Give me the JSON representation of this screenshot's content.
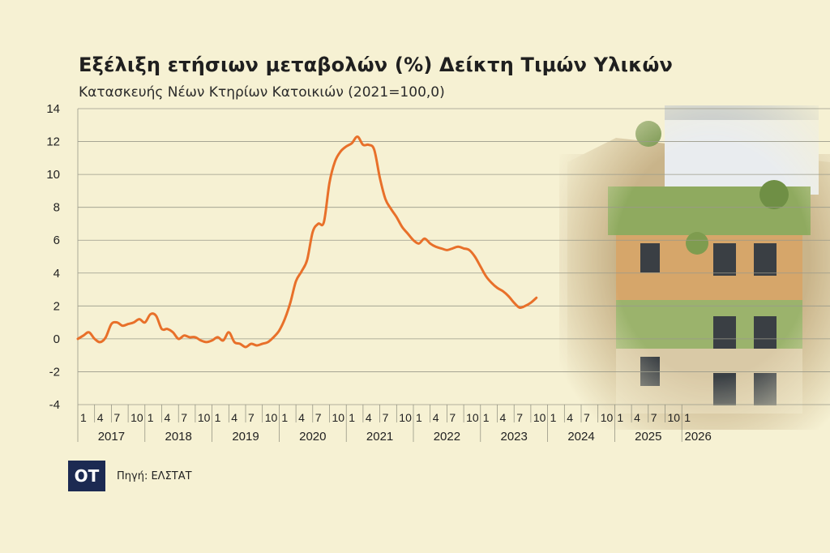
{
  "chart_data": {
    "type": "line",
    "title": "Εξέλιξη ετήσιων μεταβολών (%) Δείκτη Τιμών Υλικών",
    "subtitle": "Κατασκευής Νέων Κτηρίων Κατοικιών (2021=100,0)",
    "ylim": [
      -4,
      14
    ],
    "yticks": [
      "14",
      "12",
      "10",
      "8",
      "6",
      "4",
      "2",
      "0",
      "-2",
      "-4"
    ],
    "month_ticks": [
      "1",
      "4",
      "7",
      "10"
    ],
    "years": [
      "2017",
      "2018",
      "2019",
      "2020",
      "2021",
      "2022",
      "2023",
      "2024",
      "2025",
      "2026"
    ],
    "grid": true,
    "line_color": "#e8702a",
    "series": [
      {
        "values": [
          0.0,
          0.2,
          0.4,
          0.0,
          -0.2,
          0.1,
          0.9,
          1.0,
          0.8,
          0.9,
          1.0,
          1.2,
          1.0,
          1.5,
          1.4,
          0.6,
          0.6,
          0.4,
          0.0,
          0.2,
          0.1,
          0.1,
          -0.1,
          -0.2,
          -0.1,
          0.1,
          -0.1,
          0.4,
          -0.2,
          -0.3,
          -0.5,
          -0.3,
          -0.4,
          -0.3,
          -0.2,
          0.1,
          0.5,
          1.2,
          2.2,
          3.5,
          4.1,
          4.8,
          6.5,
          7.0,
          7.1,
          9.5,
          10.8,
          11.4,
          11.7,
          11.9,
          12.3,
          11.8,
          11.8,
          11.5,
          9.8,
          8.5,
          7.9,
          7.4,
          6.8,
          6.4,
          6.0,
          5.8,
          6.1,
          5.8,
          5.6,
          5.5,
          5.4,
          5.5,
          5.6,
          5.5,
          5.4,
          5.0,
          4.4,
          3.8,
          3.4,
          3.1,
          2.9,
          2.6,
          2.2,
          1.9,
          2.0,
          2.2,
          2.5
        ]
      }
    ]
  },
  "source_label": "Πηγή: ΕΛΣΤΑΤ",
  "logo_text": "OT"
}
